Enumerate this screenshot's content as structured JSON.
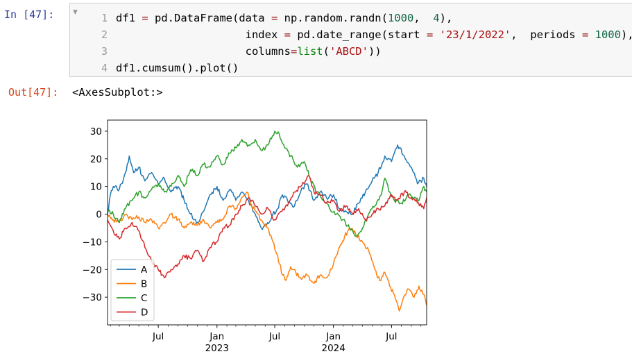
{
  "cell": {
    "in_prompt": "In  [47]:",
    "out_prompt": "Out[47]:",
    "line_numbers": [
      "1",
      "2",
      "3",
      "4"
    ],
    "output_text": "<AxesSubplot:>",
    "code_tokens": [
      [
        [
          "df1 ",
          ""
        ],
        [
          "=",
          "op"
        ],
        [
          " pd.DataFrame(data ",
          ""
        ],
        [
          "=",
          "op"
        ],
        [
          " np.random.randn(",
          ""
        ],
        [
          "1000",
          "num"
        ],
        [
          ",  ",
          ""
        ],
        [
          "4",
          "num"
        ],
        [
          "),",
          ""
        ]
      ],
      [
        [
          "                    index ",
          ""
        ],
        [
          "=",
          "op"
        ],
        [
          " pd.date_range(start ",
          ""
        ],
        [
          "=",
          "op"
        ],
        [
          " ",
          ""
        ],
        [
          "'23/1/2022'",
          "str"
        ],
        [
          ",  periods ",
          ""
        ],
        [
          "=",
          "op"
        ],
        [
          " ",
          ""
        ],
        [
          "1000",
          "num"
        ],
        [
          "),",
          ""
        ]
      ],
      [
        [
          "                    columns",
          ""
        ],
        [
          "=",
          "op"
        ],
        [
          "list",
          "kw"
        ],
        [
          "(",
          ""
        ],
        [
          "'ABCD'",
          "str"
        ],
        [
          "))",
          ""
        ]
      ],
      [
        [
          "df1.cumsum().plot()",
          ""
        ]
      ]
    ]
  },
  "chart_data": {
    "type": "line",
    "x_range": [
      "2022-01-23",
      "2024-10-19"
    ],
    "ylim": [
      -40,
      34
    ],
    "y_ticks": [
      30,
      20,
      10,
      0,
      -10,
      -20,
      -30
    ],
    "y_tick_labels": [
      "30",
      "20",
      "10",
      "0",
      "−10",
      "−20",
      "−30"
    ],
    "x_ticks": [
      {
        "date": "2022-07-01",
        "label": "Jul",
        "sub": ""
      },
      {
        "date": "2023-01-01",
        "label": "Jan",
        "sub": "2023"
      },
      {
        "date": "2023-07-01",
        "label": "Jul",
        "sub": ""
      },
      {
        "date": "2024-01-01",
        "label": "Jan",
        "sub": "2024"
      },
      {
        "date": "2024-07-01",
        "label": "Jul",
        "sub": ""
      }
    ],
    "legend_position": "lower-left",
    "series": [
      {
        "name": "A",
        "color": "#1f77b4",
        "points": [
          [
            "2022-01-23",
            0
          ],
          [
            "2022-02-01",
            7
          ],
          [
            "2022-02-10",
            10
          ],
          [
            "2022-03-01",
            9
          ],
          [
            "2022-03-20",
            15
          ],
          [
            "2022-04-01",
            21
          ],
          [
            "2022-04-15",
            15
          ],
          [
            "2022-05-01",
            17
          ],
          [
            "2022-05-20",
            12
          ],
          [
            "2022-06-10",
            15
          ],
          [
            "2022-07-01",
            11
          ],
          [
            "2022-07-20",
            13
          ],
          [
            "2022-08-10",
            8
          ],
          [
            "2022-09-01",
            10
          ],
          [
            "2022-09-20",
            5
          ],
          [
            "2022-10-10",
            0
          ],
          [
            "2022-11-01",
            -3
          ],
          [
            "2022-11-20",
            1
          ],
          [
            "2022-12-10",
            7
          ],
          [
            "2023-01-01",
            10
          ],
          [
            "2023-01-20",
            5
          ],
          [
            "2023-02-10",
            9
          ],
          [
            "2023-03-01",
            5
          ],
          [
            "2023-03-20",
            8
          ],
          [
            "2023-04-10",
            5
          ],
          [
            "2023-05-01",
            0
          ],
          [
            "2023-05-20",
            -5
          ],
          [
            "2023-06-05",
            -4
          ],
          [
            "2023-06-25",
            0
          ],
          [
            "2023-07-10",
            2
          ],
          [
            "2023-07-25",
            7
          ],
          [
            "2023-08-10",
            5
          ],
          [
            "2023-09-01",
            3
          ],
          [
            "2023-09-20",
            8
          ],
          [
            "2023-10-10",
            11
          ],
          [
            "2023-11-01",
            5
          ],
          [
            "2023-11-20",
            8
          ],
          [
            "2023-12-10",
            6
          ],
          [
            "2024-01-01",
            7
          ],
          [
            "2024-01-20",
            2
          ],
          [
            "2024-02-10",
            1
          ],
          [
            "2024-03-01",
            0
          ],
          [
            "2024-03-20",
            4
          ],
          [
            "2024-04-10",
            8
          ],
          [
            "2024-05-01",
            12
          ],
          [
            "2024-05-20",
            15
          ],
          [
            "2024-06-10",
            21
          ],
          [
            "2024-07-01",
            19
          ],
          [
            "2024-07-20",
            25
          ],
          [
            "2024-08-10",
            21
          ],
          [
            "2024-09-01",
            17
          ],
          [
            "2024-09-20",
            11
          ],
          [
            "2024-10-10",
            13
          ],
          [
            "2024-10-19",
            10
          ]
        ]
      },
      {
        "name": "B",
        "color": "#ff7f0e",
        "points": [
          [
            "2022-01-23",
            0
          ],
          [
            "2022-02-10",
            -2
          ],
          [
            "2022-03-01",
            -3
          ],
          [
            "2022-03-20",
            0
          ],
          [
            "2022-04-10",
            -2
          ],
          [
            "2022-05-01",
            -1
          ],
          [
            "2022-05-20",
            -3
          ],
          [
            "2022-06-10",
            -2
          ],
          [
            "2022-07-01",
            -5
          ],
          [
            "2022-07-20",
            -3
          ],
          [
            "2022-08-10",
            0
          ],
          [
            "2022-09-01",
            -2
          ],
          [
            "2022-09-20",
            -5
          ],
          [
            "2022-10-10",
            -3
          ],
          [
            "2022-11-01",
            -4
          ],
          [
            "2022-11-20",
            -2
          ],
          [
            "2022-12-10",
            -5
          ],
          [
            "2023-01-01",
            -3
          ],
          [
            "2023-01-20",
            -2
          ],
          [
            "2023-02-10",
            3
          ],
          [
            "2023-03-01",
            2
          ],
          [
            "2023-03-20",
            6
          ],
          [
            "2023-04-05",
            8
          ],
          [
            "2023-04-20",
            3
          ],
          [
            "2023-05-10",
            0
          ],
          [
            "2023-05-25",
            -3
          ],
          [
            "2023-06-10",
            -5
          ],
          [
            "2023-06-25",
            -10
          ],
          [
            "2023-07-10",
            -15
          ],
          [
            "2023-07-25",
            -22
          ],
          [
            "2023-08-05",
            -24
          ],
          [
            "2023-08-20",
            -19
          ],
          [
            "2023-09-05",
            -21
          ],
          [
            "2023-09-20",
            -23
          ],
          [
            "2023-10-10",
            -22
          ],
          [
            "2023-11-01",
            -25
          ],
          [
            "2023-11-20",
            -22
          ],
          [
            "2023-12-10",
            -23
          ],
          [
            "2024-01-01",
            -18
          ],
          [
            "2024-01-20",
            -12
          ],
          [
            "2024-02-05",
            -8
          ],
          [
            "2024-02-20",
            -5
          ],
          [
            "2024-03-10",
            -7
          ],
          [
            "2024-04-01",
            -10
          ],
          [
            "2024-04-20",
            -13
          ],
          [
            "2024-05-10",
            -20
          ],
          [
            "2024-05-25",
            -24
          ],
          [
            "2024-06-10",
            -21
          ],
          [
            "2024-06-25",
            -26
          ],
          [
            "2024-07-10",
            -29
          ],
          [
            "2024-07-25",
            -35
          ],
          [
            "2024-08-05",
            -31
          ],
          [
            "2024-08-20",
            -27
          ],
          [
            "2024-09-10",
            -30
          ],
          [
            "2024-09-25",
            -26
          ],
          [
            "2024-10-10",
            -29
          ],
          [
            "2024-10-19",
            -33
          ]
        ]
      },
      {
        "name": "C",
        "color": "#2ca02c",
        "points": [
          [
            "2022-01-23",
            2
          ],
          [
            "2022-02-10",
            0
          ],
          [
            "2022-03-01",
            -3
          ],
          [
            "2022-03-20",
            2
          ],
          [
            "2022-04-10",
            5
          ],
          [
            "2022-05-01",
            8
          ],
          [
            "2022-05-20",
            6
          ],
          [
            "2022-06-10",
            9
          ],
          [
            "2022-07-01",
            11
          ],
          [
            "2022-07-20",
            8
          ],
          [
            "2022-08-10",
            10
          ],
          [
            "2022-09-01",
            14
          ],
          [
            "2022-09-20",
            10
          ],
          [
            "2022-10-10",
            16
          ],
          [
            "2022-11-01",
            14
          ],
          [
            "2022-11-20",
            18
          ],
          [
            "2022-12-10",
            17
          ],
          [
            "2023-01-01",
            21
          ],
          [
            "2023-01-20",
            18
          ],
          [
            "2023-02-10",
            22
          ],
          [
            "2023-03-01",
            24
          ],
          [
            "2023-03-20",
            27
          ],
          [
            "2023-04-10",
            25
          ],
          [
            "2023-05-01",
            27
          ],
          [
            "2023-05-20",
            23
          ],
          [
            "2023-06-10",
            25
          ],
          [
            "2023-07-01",
            30
          ],
          [
            "2023-07-15",
            29
          ],
          [
            "2023-08-01",
            24
          ],
          [
            "2023-08-20",
            21
          ],
          [
            "2023-09-10",
            17
          ],
          [
            "2023-10-01",
            19
          ],
          [
            "2023-10-20",
            13
          ],
          [
            "2023-11-10",
            8
          ],
          [
            "2023-12-01",
            5
          ],
          [
            "2023-12-20",
            2
          ],
          [
            "2024-01-10",
            0
          ],
          [
            "2024-02-01",
            -2
          ],
          [
            "2024-02-20",
            -5
          ],
          [
            "2024-03-10",
            -8
          ],
          [
            "2024-04-01",
            -5
          ],
          [
            "2024-04-20",
            0
          ],
          [
            "2024-05-10",
            3
          ],
          [
            "2024-06-01",
            8
          ],
          [
            "2024-06-10",
            13
          ],
          [
            "2024-06-25",
            8
          ],
          [
            "2024-07-10",
            5
          ],
          [
            "2024-08-01",
            4
          ],
          [
            "2024-08-20",
            7
          ],
          [
            "2024-09-10",
            6
          ],
          [
            "2024-09-25",
            5
          ],
          [
            "2024-10-10",
            10
          ],
          [
            "2024-10-19",
            8
          ]
        ]
      },
      {
        "name": "D",
        "color": "#d62728",
        "points": [
          [
            "2022-01-23",
            -2
          ],
          [
            "2022-02-10",
            -6
          ],
          [
            "2022-03-01",
            -9
          ],
          [
            "2022-03-20",
            -5
          ],
          [
            "2022-04-10",
            -3
          ],
          [
            "2022-05-01",
            -6
          ],
          [
            "2022-05-20",
            -12
          ],
          [
            "2022-06-10",
            -17
          ],
          [
            "2022-07-01",
            -20
          ],
          [
            "2022-07-20",
            -23
          ],
          [
            "2022-08-10",
            -20
          ],
          [
            "2022-09-01",
            -18
          ],
          [
            "2022-09-20",
            -15
          ],
          [
            "2022-10-10",
            -16
          ],
          [
            "2022-11-01",
            -13
          ],
          [
            "2022-11-20",
            -17
          ],
          [
            "2022-12-10",
            -12
          ],
          [
            "2023-01-01",
            -10
          ],
          [
            "2023-01-20",
            -5
          ],
          [
            "2023-02-10",
            -4
          ],
          [
            "2023-03-01",
            0
          ],
          [
            "2023-03-20",
            3
          ],
          [
            "2023-04-10",
            6
          ],
          [
            "2023-05-01",
            3
          ],
          [
            "2023-05-20",
            0
          ],
          [
            "2023-06-10",
            2
          ],
          [
            "2023-07-01",
            -2
          ],
          [
            "2023-07-20",
            1
          ],
          [
            "2023-08-10",
            3
          ],
          [
            "2023-09-01",
            8
          ],
          [
            "2023-09-20",
            10
          ],
          [
            "2023-10-01",
            11
          ],
          [
            "2023-10-15",
            14
          ],
          [
            "2023-11-01",
            8
          ],
          [
            "2023-11-20",
            7
          ],
          [
            "2023-12-10",
            4
          ],
          [
            "2024-01-01",
            5
          ],
          [
            "2024-01-20",
            1
          ],
          [
            "2024-02-10",
            3
          ],
          [
            "2024-03-01",
            0
          ],
          [
            "2024-03-20",
            2
          ],
          [
            "2024-04-10",
            -2
          ],
          [
            "2024-05-01",
            0
          ],
          [
            "2024-05-20",
            2
          ],
          [
            "2024-06-10",
            3
          ],
          [
            "2024-07-01",
            7
          ],
          [
            "2024-07-20",
            5
          ],
          [
            "2024-08-10",
            8
          ],
          [
            "2024-09-01",
            6
          ],
          [
            "2024-09-20",
            4
          ],
          [
            "2024-10-10",
            2
          ],
          [
            "2024-10-19",
            6
          ]
        ]
      }
    ]
  }
}
